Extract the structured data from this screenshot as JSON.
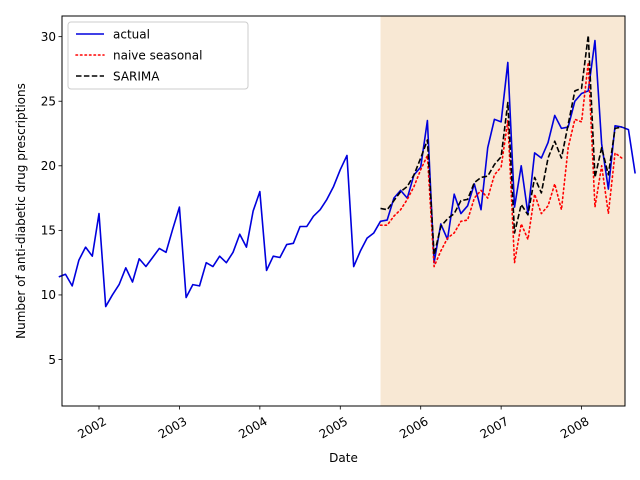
{
  "chart_data": {
    "type": "line",
    "title": "",
    "xlabel": "Date",
    "ylabel": "Number of anti-diabetic drug prescriptions",
    "xlim": [
      2001.54,
      2008.54
    ],
    "ylim": [
      1.4,
      31.6
    ],
    "y_ticks": [
      5,
      10,
      15,
      20,
      25,
      30
    ],
    "x_ticks": [
      {
        "value": 2002,
        "label": "2002"
      },
      {
        "value": 2003,
        "label": "2003"
      },
      {
        "value": 2004,
        "label": "2004"
      },
      {
        "value": 2005,
        "label": "2005"
      },
      {
        "value": 2006,
        "label": "2006"
      },
      {
        "value": 2007,
        "label": "2007"
      },
      {
        "value": 2008,
        "label": "2008"
      }
    ],
    "forecast_region": {
      "start": 2005.5,
      "end": 2008.54,
      "color": "#f8e8d4"
    },
    "legend": {
      "placement": "upper-left"
    },
    "series": [
      {
        "name": "actual",
        "color": "#0000dd",
        "style": "solid",
        "start": 2001.5,
        "step": 0.08333,
        "values": [
          11.4,
          11.6,
          10.7,
          12.7,
          13.7,
          13.0,
          16.3,
          9.1,
          10.0,
          10.8,
          12.1,
          11.0,
          12.8,
          12.2,
          12.9,
          13.6,
          13.3,
          15.1,
          16.8,
          9.8,
          10.8,
          10.7,
          12.5,
          12.2,
          13.0,
          12.5,
          13.3,
          14.7,
          13.7,
          16.5,
          18.0,
          11.9,
          13.0,
          12.9,
          13.9,
          14.0,
          15.3,
          15.3,
          16.1,
          16.6,
          17.4,
          18.4,
          19.7,
          20.8,
          12.2,
          13.4,
          14.4,
          14.8,
          15.7,
          15.8,
          17.5,
          18.1,
          17.5,
          19.3,
          19.9,
          23.5,
          12.5,
          15.5,
          14.3,
          17.8,
          16.3,
          16.9,
          18.6,
          16.6,
          21.4,
          23.6,
          23.4,
          28.0,
          16.8,
          20.0,
          16.3,
          21.0,
          20.6,
          21.8,
          23.9,
          22.9,
          23.0,
          25.0,
          25.6,
          25.8,
          29.7,
          21.7,
          18.2,
          23.1,
          23.0,
          22.8,
          19.4
        ]
      },
      {
        "name": "naive seasonal",
        "color": "#ff0000",
        "style": "dotted",
        "start": 2005.5,
        "step": 0.08333,
        "values": [
          15.4,
          15.4,
          16.1,
          16.6,
          17.4,
          18.4,
          19.7,
          20.8,
          12.2,
          13.4,
          14.4,
          14.8,
          15.7,
          15.8,
          17.5,
          18.1,
          17.5,
          19.3,
          19.9,
          23.5,
          12.5,
          15.5,
          14.3,
          17.8,
          16.3,
          16.9,
          18.6,
          16.6,
          21.4,
          23.6,
          23.4,
          28.0,
          16.8,
          20.0,
          16.3,
          21.0,
          20.6
        ]
      },
      {
        "name": "SARIMA",
        "color": "#000000",
        "style": "dashed",
        "start": 2005.5,
        "step": 0.08333,
        "values": [
          16.7,
          16.6,
          17.3,
          18.0,
          18.4,
          19.3,
          20.6,
          22.0,
          13.1,
          15.3,
          15.9,
          16.3,
          17.3,
          17.4,
          18.7,
          19.1,
          19.2,
          20.1,
          20.7,
          24.9,
          14.8,
          17.0,
          16.2,
          19.1,
          17.9,
          20.6,
          21.9,
          20.6,
          23.2,
          25.8,
          26.0,
          30.1,
          19.1,
          21.4,
          19.3,
          22.9,
          23.0
        ]
      }
    ]
  }
}
